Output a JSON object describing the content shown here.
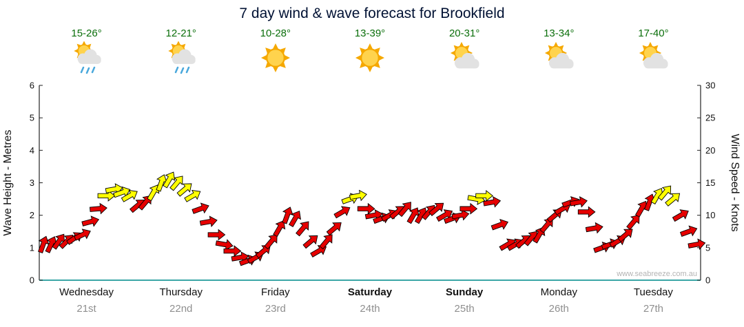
{
  "chart_data": {
    "type": "line",
    "title": "7 day wind & wave forecast for Brookfield",
    "ylabel_left": "Wave Height - Metres",
    "ylabel_right": "Wind Speed - Knots",
    "ylim_left": [
      0,
      6
    ],
    "ylim_right": [
      0,
      30
    ],
    "yticks_left": [
      0,
      1,
      2,
      3,
      4,
      5,
      6
    ],
    "yticks_right": [
      0,
      5,
      10,
      15,
      20,
      25,
      30
    ],
    "grid": false,
    "legend": false,
    "watermark": "www.seabreeze.com.au",
    "days": [
      {
        "name": "Wednesday",
        "date": "21st",
        "temp": "15-26°",
        "icon": "sun-cloud-rain",
        "bold": false
      },
      {
        "name": "Thursday",
        "date": "22nd",
        "temp": "12-21°",
        "icon": "sun-cloud-rain",
        "bold": false
      },
      {
        "name": "Friday",
        "date": "23rd",
        "temp": "10-28°",
        "icon": "sun",
        "bold": false
      },
      {
        "name": "Saturday",
        "date": "24th",
        "temp": "13-39°",
        "icon": "sun",
        "bold": true
      },
      {
        "name": "Sunday",
        "date": "25th",
        "temp": "20-31°",
        "icon": "sun-cloud",
        "bold": true
      },
      {
        "name": "Monday",
        "date": "26th",
        "temp": "13-34°",
        "icon": "sun-cloud",
        "bold": false
      },
      {
        "name": "Tuesday",
        "date": "27th",
        "temp": "17-40°",
        "icon": "sun-cloud",
        "bold": false
      }
    ],
    "yellow_threshold_knots": 12.5,
    "colors": {
      "red": "#e60000",
      "yellow": "#ffff00",
      "outline": "#000000",
      "baseline": "#3aa6a6"
    },
    "series": [
      {
        "name": "Wind Speed (knots)",
        "points_per_day": 12,
        "values": [
          5.5,
          5.5,
          6,
          6,
          6.5,
          7,
          9,
          11,
          13,
          14,
          13.5,
          13,
          11.5,
          12,
          13.5,
          15,
          15.5,
          15,
          14,
          13,
          11,
          9,
          7,
          5.5,
          4.5,
          3.5,
          3,
          3.5,
          4.5,
          6,
          8,
          10,
          9.5,
          8,
          6,
          4.5,
          6,
          8,
          10.5,
          12.5,
          13,
          11,
          10,
          9.5,
          10,
          10.5,
          11,
          10,
          10,
          10.5,
          11,
          10,
          9.5,
          10,
          11,
          12.5,
          13,
          12,
          8.5,
          5.5,
          5.5,
          6,
          6.5,
          7,
          8.5,
          10,
          11,
          12,
          12,
          10.5,
          8,
          5,
          5.5,
          6,
          7,
          9,
          11,
          12,
          13,
          13.5,
          12.5,
          10,
          7.5,
          5.5
        ],
        "directions": [
          -70,
          -65,
          -55,
          -45,
          -35,
          -25,
          -15,
          -5,
          0,
          -10,
          -20,
          -30,
          -40,
          -50,
          -60,
          -70,
          -60,
          -50,
          -40,
          -30,
          -20,
          -10,
          0,
          10,
          0,
          -10,
          -20,
          -30,
          -40,
          -50,
          -60,
          -70,
          -60,
          -50,
          -40,
          -30,
          -50,
          -40,
          -30,
          -20,
          -10,
          0,
          -10,
          -20,
          -30,
          -40,
          -50,
          -60,
          -60,
          -50,
          -40,
          -30,
          -20,
          -10,
          0,
          10,
          0,
          -10,
          -20,
          -30,
          -30,
          -40,
          -50,
          -60,
          -50,
          -40,
          -30,
          -20,
          -10,
          0,
          -10,
          -20,
          -20,
          -30,
          -40,
          -50,
          -60,
          -70,
          -60,
          -50,
          -40,
          -30,
          -20,
          -10
        ]
      }
    ]
  }
}
